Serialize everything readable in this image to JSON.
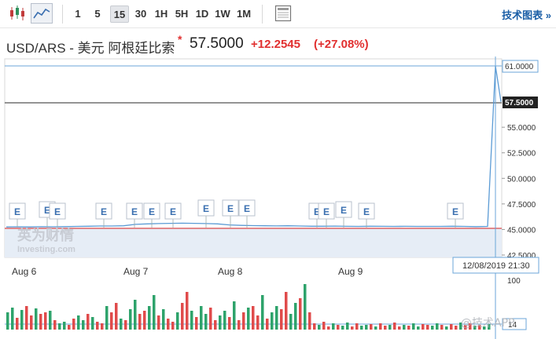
{
  "toolbar": {
    "chart_type_icons": [
      "candlestick-icon",
      "area-chart-icon"
    ],
    "intervals": [
      "1",
      "5",
      "15",
      "30",
      "1H",
      "5H",
      "1D",
      "1W",
      "1M"
    ],
    "active_interval": "15",
    "settings_icon": "panel-icon",
    "tech_chart_link": "技术图表 »"
  },
  "header": {
    "pair": "USD/ARS - 美元 阿根廷比索",
    "star": "*",
    "price": "57.5000",
    "change": "+12.2545",
    "change_pct": "(+27.08%)"
  },
  "colors": {
    "up": "#2ea36b",
    "down": "#e04b4b",
    "line": "#5b9bd5",
    "current_line": "#444444",
    "baseline": "#e04b4b"
  },
  "watermark": {
    "brand_cn": "英为财情",
    "brand_en": "Investing.com",
    "overlay": "@技术APP"
  },
  "chart_data": {
    "type": "line",
    "y_ticks": [
      "61.0000",
      "57.5000",
      "55.0000",
      "52.5000",
      "50.0000",
      "47.5000",
      "45.0000",
      "42.5000"
    ],
    "ylim": [
      42.5,
      61.0
    ],
    "x_ticks": [
      "Aug 6",
      "Aug 7",
      "Aug 8",
      "Aug 9"
    ],
    "crosshair_label": "12/08/2019 21:30",
    "current_value_label": "57.5000",
    "high_value_label": "61.0000",
    "event_marker_label": "E",
    "event_count": 18,
    "price_series": [
      45.25,
      45.26,
      45.25,
      45.27,
      45.26,
      45.28,
      45.3,
      45.32,
      45.34,
      45.34,
      45.36,
      45.5,
      45.55,
      45.58,
      45.6,
      45.62,
      45.6,
      45.58,
      45.55,
      45.45,
      45.4,
      45.38,
      45.36,
      45.35,
      45.36,
      45.34,
      45.32,
      45.32,
      45.33,
      45.31,
      45.3,
      45.32,
      45.31,
      45.3,
      45.31,
      45.3,
      45.3,
      45.3,
      45.32,
      45.3,
      45.28,
      45.3,
      61.0,
      57.5
    ],
    "volume_axis": {
      "top_label": "100",
      "current_label": "14"
    }
  }
}
